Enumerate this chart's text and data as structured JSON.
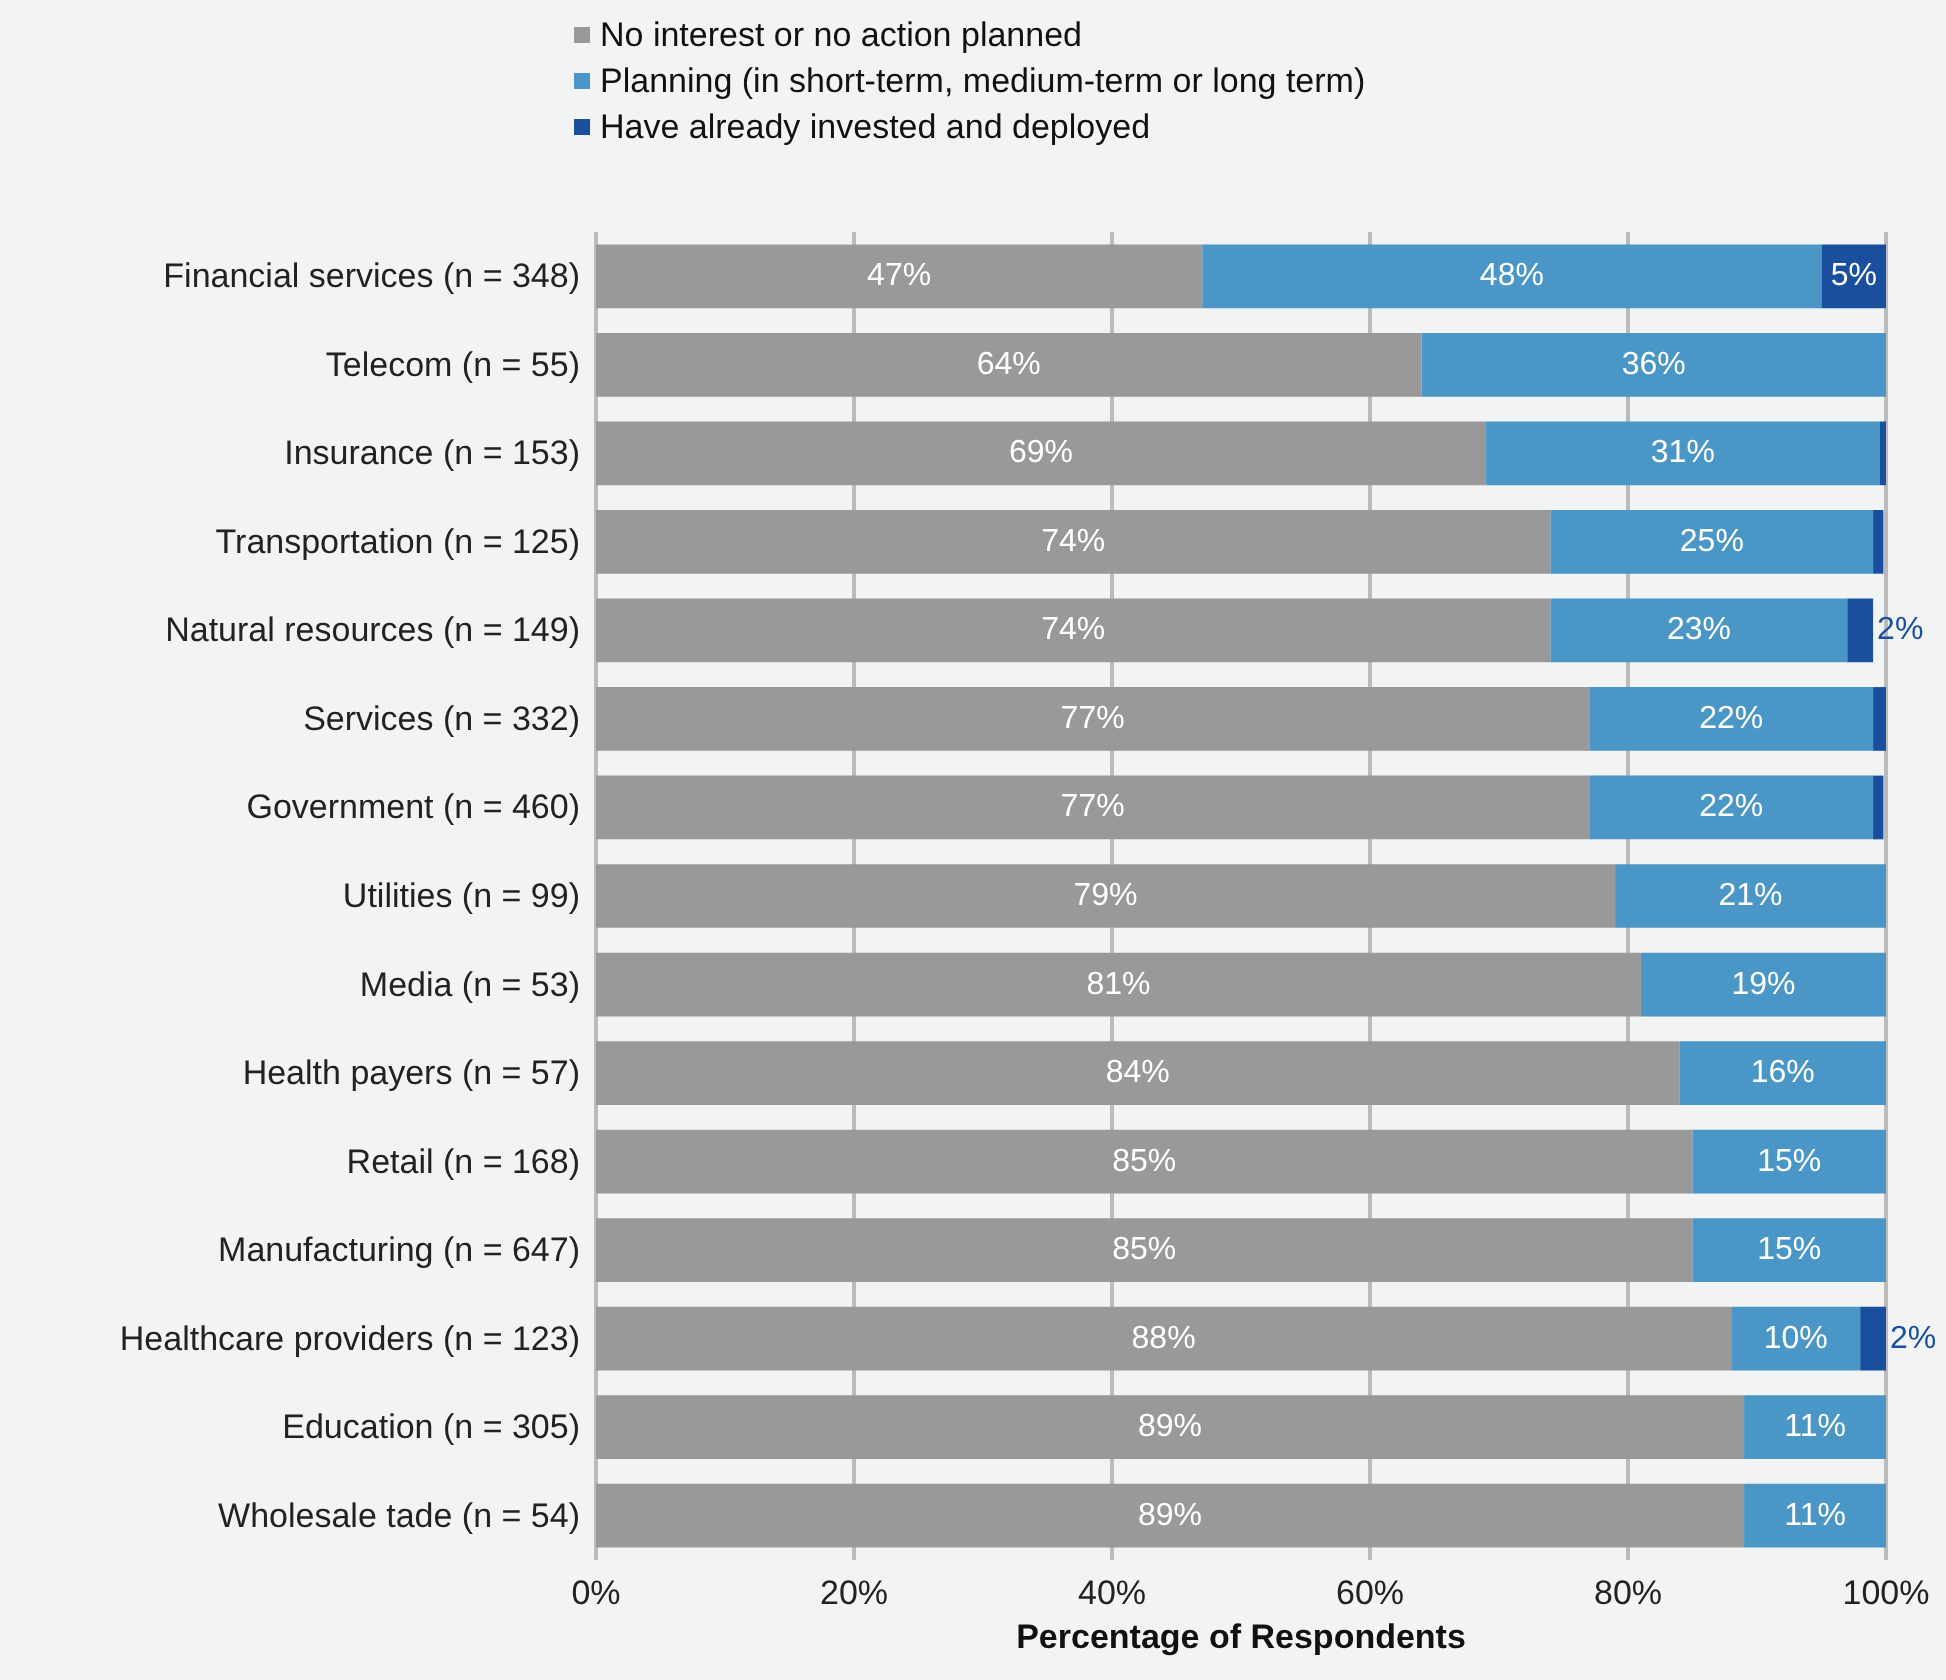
{
  "chart_data": {
    "type": "bar",
    "orientation": "horizontal",
    "stacked": true,
    "xlabel": "Percentage of Respondents",
    "categories": [
      "Financial services (n = 348)",
      "Telecom (n = 55)",
      "Insurance (n = 153)",
      "Transportation (n = 125)",
      "Natural resources (n = 149)",
      "Services (n = 332)",
      "Government (n = 460)",
      "Utilities (n = 99)",
      "Media (n = 53)",
      "Health payers (n = 57)",
      "Retail (n = 168)",
      "Manufacturing (n = 647)",
      "Healthcare providers (n = 123)",
      "Education (n = 305)",
      "Wholesale tade (n = 54)"
    ],
    "series": [
      {
        "name": "No interest or no action planned",
        "color": "#999999",
        "values": [
          47,
          64,
          69,
          74,
          74,
          77,
          77,
          79,
          81,
          84,
          85,
          85,
          88,
          89,
          89
        ],
        "value_labels": [
          "47%",
          "64%",
          "69%",
          "74%",
          "74%",
          "77%",
          "77%",
          "79%",
          "81%",
          "84%",
          "85%",
          "85%",
          "88%",
          "89%",
          "89%"
        ]
      },
      {
        "name": "Planning (in short-term, medium-term or long term)",
        "color": "#4a96c6",
        "values": [
          48,
          36,
          30.5,
          25,
          23,
          22,
          22,
          21,
          19,
          16,
          15,
          15,
          10,
          11,
          11
        ],
        "value_labels": [
          "48%",
          "36%",
          "31%",
          "25%",
          "23%",
          "22%",
          "22%",
          "21%",
          "19%",
          "16%",
          "15%",
          "15%",
          "10%",
          "11%",
          "11%"
        ]
      },
      {
        "name": "Have already invested and deployed",
        "color": "#1a4f9e",
        "values": [
          5,
          0,
          0.5,
          0.8,
          2,
          1,
          0.8,
          0,
          0,
          0,
          0,
          0,
          2,
          0,
          0
        ],
        "value_labels": [
          "5%",
          null,
          null,
          null,
          "2%",
          null,
          null,
          null,
          null,
          null,
          null,
          null,
          "2%",
          null,
          null
        ]
      }
    ],
    "xlim": [
      0,
      100
    ],
    "xticks": [
      {
        "value": 0,
        "label": "0%"
      },
      {
        "value": 20,
        "label": "20%"
      },
      {
        "value": 40,
        "label": "40%"
      },
      {
        "value": 60,
        "label": "60%"
      },
      {
        "value": 80,
        "label": "80%"
      },
      {
        "value": 100,
        "label": "100%"
      }
    ],
    "grid": "x",
    "legend": "top"
  }
}
